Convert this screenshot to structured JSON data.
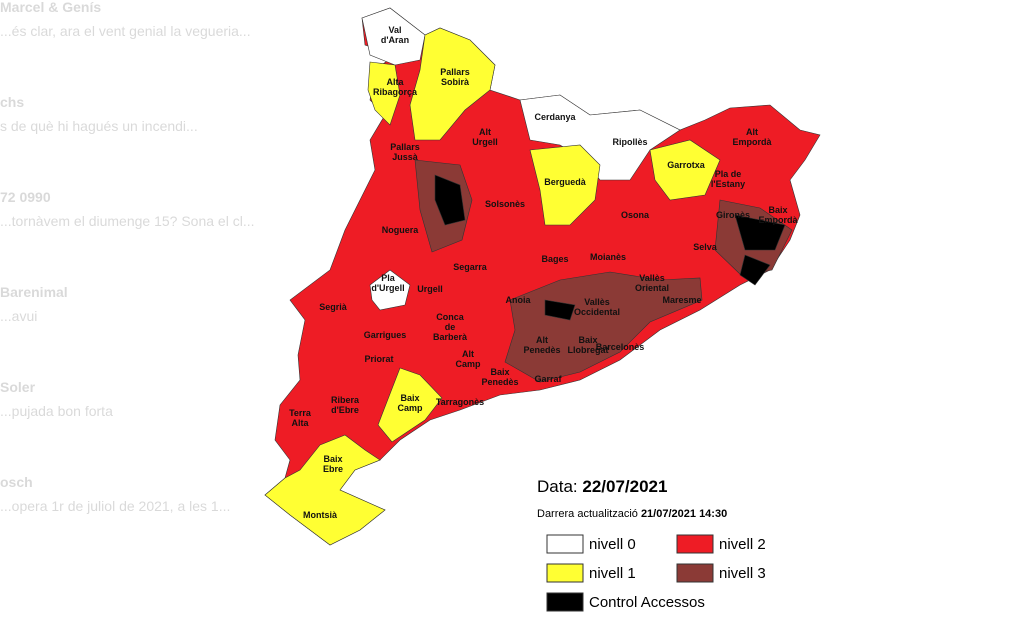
{
  "chat": [
    {
      "name": "Marcel & Genís",
      "preview": "...és clar, ara el vent genial la vegueria..."
    },
    {
      "name": "chs",
      "preview": "s de què hi hagués un incendi..."
    },
    {
      "name": "72 0990",
      "preview": "...tornàvem el diumenge 15? Sona el cl..."
    },
    {
      "name": "Barenimal",
      "preview": "...avui"
    },
    {
      "name": "Soler",
      "preview": "...pujada bon forta"
    },
    {
      "name": "osch",
      "preview": "...opera 1r de juliol de 2021, a les 1..."
    }
  ],
  "map": {
    "regions": [
      [
        "Val",
        "d'Aran"
      ],
      [
        "Pallars",
        "Sobirà"
      ],
      [
        "Alta",
        "Ribagorça"
      ],
      [
        "Pallars",
        "Jussà"
      ],
      [
        "Alt",
        "Urgell"
      ],
      [
        "Cerdanya"
      ],
      [
        "Ripollès"
      ],
      [
        "Alt",
        "Empordà"
      ],
      [
        "Garrotxa"
      ],
      [
        "Pla de",
        "l'Estany"
      ],
      [
        "Berguedà"
      ],
      [
        "Solsonès"
      ],
      [
        "Noguera"
      ],
      [
        "Osona"
      ],
      [
        "Gironès"
      ],
      [
        "Baix",
        "Empordà"
      ],
      [
        "Selva"
      ],
      [
        "Bages"
      ],
      [
        "Moianès"
      ],
      [
        "Segarra"
      ],
      [
        "Pla",
        "d'Urgell"
      ],
      [
        "Urgell"
      ],
      [
        "Segrià"
      ],
      [
        "Anoia"
      ],
      [
        "Vallès",
        "Occidental"
      ],
      [
        "Vallès",
        "Oriental"
      ],
      [
        "Maresme"
      ],
      [
        "Garrigues"
      ],
      [
        "Conca",
        "de",
        "Barberà"
      ],
      [
        "Alt",
        "Penedès"
      ],
      [
        "Baix",
        "Llobregat"
      ],
      [
        "Barcelonès"
      ],
      [
        "Alt",
        "Camp"
      ],
      [
        "Priorat"
      ],
      [
        "Ribera",
        "d'Ebre"
      ],
      [
        "Baix",
        "Penedès"
      ],
      [
        "Garraf"
      ],
      [
        "Tarragonès"
      ],
      [
        "Baix",
        "Camp"
      ],
      [
        "Terra",
        "Alta"
      ],
      [
        "Baix",
        "Ebre"
      ],
      [
        "Montsià"
      ]
    ]
  },
  "legend": {
    "date_label": "Data:",
    "date": "22/07/2021",
    "update_label": "Darrera actualització",
    "update_date": "21/07/2021",
    "update_time": "14:30",
    "items": [
      {
        "label": "nivell 0",
        "color": "#ffffff"
      },
      {
        "label": "nivell 2",
        "color": "#ee1c25"
      },
      {
        "label": "nivell 1",
        "color": "#ffff33"
      },
      {
        "label": "nivell 3",
        "color": "#8b3a36"
      },
      {
        "label": "Control Accessos",
        "color": "#000000"
      }
    ]
  }
}
